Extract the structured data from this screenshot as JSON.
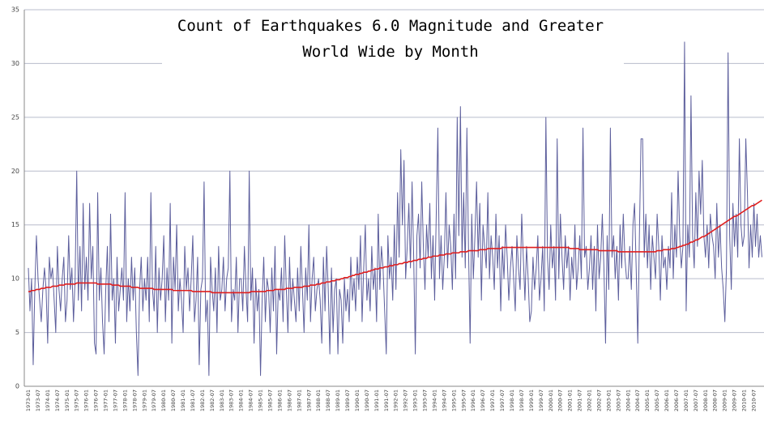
{
  "chart_data": {
    "type": "line",
    "title": [
      "Count of Earthquakes 6.0 Magnitude and Greater",
      "World Wide by Month"
    ],
    "ylim": [
      0,
      35
    ],
    "yticks": [
      0,
      5,
      10,
      15,
      20,
      25,
      30,
      35
    ],
    "grid": true,
    "categories": [
      "1973-01",
      null,
      null,
      null,
      null,
      null,
      "1973-07",
      null,
      null,
      null,
      null,
      null,
      "1974-01",
      null,
      null,
      null,
      null,
      null,
      "1974-07",
      null,
      null,
      null,
      null,
      null,
      "1975-01",
      null,
      null,
      null,
      null,
      null,
      "1975-07",
      null,
      null,
      null,
      null,
      null,
      "1976-01",
      null,
      null,
      null,
      null,
      null,
      "1976-07",
      null,
      null,
      null,
      null,
      null,
      "1977-01",
      null,
      null,
      null,
      null,
      null,
      "1977-07",
      null,
      null,
      null,
      null,
      null,
      "1978-01",
      null,
      null,
      null,
      null,
      null,
      "1978-07",
      null,
      null,
      null,
      null,
      null,
      "1979-01",
      null,
      null,
      null,
      null,
      null,
      "1979-07",
      null,
      null,
      null,
      null,
      null,
      "1980-01",
      null,
      null,
      null,
      null,
      null,
      "1980-07",
      null,
      null,
      null,
      null,
      null,
      "1981-01",
      null,
      null,
      null,
      null,
      null,
      "1981-07",
      null,
      null,
      null,
      null,
      null,
      "1982-01",
      null,
      null,
      null,
      null,
      null,
      "1982-07",
      null,
      null,
      null,
      null,
      null,
      "1983-01",
      null,
      null,
      null,
      null,
      null,
      "1983-07",
      null,
      null,
      null,
      null,
      null,
      "1984-01",
      null,
      null,
      null,
      null,
      null,
      "1984-07",
      null,
      null,
      null,
      null,
      null,
      "1985-01",
      null,
      null,
      null,
      null,
      null,
      "1985-07",
      null,
      null,
      null,
      null,
      null,
      "1986-01",
      null,
      null,
      null,
      null,
      null,
      "1986-07",
      null,
      null,
      null,
      null,
      null,
      "1987-01",
      null,
      null,
      null,
      null,
      null,
      "1987-07",
      null,
      null,
      null,
      null,
      null,
      "1988-01",
      null,
      null,
      null,
      null,
      null,
      "1988-07",
      null,
      null,
      null,
      null,
      null,
      "1989-01",
      null,
      null,
      null,
      null,
      null,
      "1989-07",
      null,
      null,
      null,
      null,
      null,
      "1990-01",
      null,
      null,
      null,
      null,
      null,
      "1990-07",
      null,
      null,
      null,
      null,
      null,
      "1991-01",
      null,
      null,
      null,
      null,
      null,
      "1991-07",
      null,
      null,
      null,
      null,
      null,
      "1992-01",
      null,
      null,
      null,
      null,
      null,
      "1992-07",
      null,
      null,
      null,
      null,
      null,
      "1993-01",
      null,
      null,
      null,
      null,
      null,
      "1993-07",
      null,
      null,
      null,
      null,
      null,
      "1994-01",
      null,
      null,
      null,
      null,
      null,
      "1994-07",
      null,
      null,
      null,
      null,
      null,
      "1995-01",
      null,
      null,
      null,
      null,
      null,
      "1995-07",
      null,
      null,
      null,
      null,
      null,
      "1996-01",
      null,
      null,
      null,
      null,
      null,
      "1996-07",
      null,
      null,
      null,
      null,
      null,
      "1997-01",
      null,
      null,
      null,
      null,
      null,
      "1997-07",
      null,
      null,
      null,
      null,
      null,
      "1998-01",
      null,
      null,
      null,
      null,
      null,
      "1998-07",
      null,
      null,
      null,
      null,
      null,
      "1999-01",
      null,
      null,
      null,
      null,
      null,
      "1999-07",
      null,
      null,
      null,
      null,
      null,
      "2000-01",
      null,
      null,
      null,
      null,
      null,
      "2000-07",
      null,
      null,
      null,
      null,
      null,
      "2001-01",
      null,
      null,
      null,
      null,
      null,
      "2001-07",
      null,
      null,
      null,
      null,
      null,
      "2002-01",
      null,
      null,
      null,
      null,
      null,
      "2002-07",
      null,
      null,
      null,
      null,
      null,
      "2003-01",
      null,
      null,
      null,
      null,
      null,
      "2003-07",
      null,
      null,
      null,
      null,
      null,
      "2004-01",
      null,
      null,
      null,
      null,
      null,
      "2004-07",
      null,
      null,
      null,
      null,
      null,
      "2005-01",
      null,
      null,
      null,
      null,
      null,
      "2005-07",
      null,
      null,
      null,
      null,
      null,
      "2006-01",
      null,
      null,
      null,
      null,
      null,
      "2006-07",
      null,
      null,
      null,
      null,
      null,
      "2007-01",
      null,
      null,
      null,
      null,
      null,
      "2007-07",
      null,
      null,
      null,
      null,
      null,
      "2008-01",
      null,
      null,
      null,
      null,
      null,
      "2008-07",
      null,
      null,
      null,
      null,
      null,
      "2009-01",
      null,
      null,
      null,
      null,
      null,
      "2009-07",
      null,
      null,
      null,
      null,
      null,
      "2010-01",
      null,
      null,
      null,
      null,
      null,
      "2010-07",
      null,
      null,
      null,
      null,
      null
    ],
    "series": [
      {
        "color": "#5c5e9c",
        "values": [
          11,
          7,
          10,
          2,
          9,
          14,
          10,
          8,
          6,
          9,
          11,
          9,
          4,
          12,
          10,
          11,
          8,
          5,
          13,
          9,
          7,
          10,
          12,
          6,
          8,
          14,
          9,
          11,
          6,
          10,
          20,
          8,
          13,
          7,
          17,
          9,
          12,
          8,
          17,
          10,
          13,
          4,
          3,
          18,
          8,
          11,
          6,
          3,
          9,
          13,
          6,
          16,
          8,
          10,
          4,
          12,
          7,
          9,
          11,
          8,
          18,
          6,
          10,
          7,
          12,
          8,
          11,
          5,
          1,
          9,
          12,
          7,
          10,
          8,
          12,
          6,
          18,
          9,
          7,
          13,
          5,
          11,
          8,
          10,
          14,
          6,
          11,
          8,
          17,
          4,
          12,
          9,
          15,
          7,
          10,
          8,
          5,
          13,
          9,
          11,
          7,
          10,
          14,
          6,
          8,
          12,
          2,
          9,
          10,
          19,
          6,
          8,
          1,
          12,
          9,
          7,
          11,
          5,
          13,
          8,
          9,
          12,
          7,
          10,
          11,
          20,
          6,
          9,
          8,
          12,
          5,
          10,
          10,
          7,
          13,
          9,
          6,
          20,
          8,
          11,
          4,
          10,
          7,
          9,
          1,
          8,
          12,
          6,
          10,
          9,
          5,
          11,
          7,
          13,
          3,
          9,
          8,
          11,
          6,
          14,
          9,
          5,
          12,
          7,
          10,
          8,
          6,
          11,
          7,
          13,
          9,
          5,
          11,
          8,
          15,
          6,
          10,
          12,
          7,
          9,
          10,
          8,
          4,
          12,
          7,
          13,
          9,
          3,
          11,
          5,
          9,
          10,
          3,
          9,
          8,
          4,
          10,
          7,
          9,
          6,
          12,
          8,
          10,
          7,
          12,
          9,
          14,
          6,
          11,
          15,
          8,
          10,
          7,
          13,
          9,
          11,
          6,
          16,
          9,
          13,
          11,
          7,
          3,
          14,
          10,
          12,
          8,
          15,
          9,
          18,
          12,
          22,
          15,
          21,
          10,
          13,
          17,
          11,
          19,
          12,
          3,
          14,
          16,
          11,
          19,
          13,
          9,
          15,
          12,
          17,
          10,
          14,
          8,
          16,
          24,
          10,
          14,
          9,
          12,
          18,
          11,
          15,
          13,
          9,
          16,
          10,
          25,
          14,
          26,
          12,
          18,
          11,
          24,
          13,
          4,
          16,
          10,
          14,
          19,
          12,
          17,
          8,
          15,
          13,
          11,
          18,
          10,
          14,
          12,
          9,
          16,
          11,
          14,
          7,
          13,
          10,
          15,
          12,
          8,
          11,
          13,
          10,
          7,
          14,
          11,
          9,
          16,
          12,
          8,
          13,
          10,
          6,
          7,
          12,
          9,
          11,
          14,
          8,
          10,
          13,
          7,
          25,
          12,
          9,
          15,
          11,
          13,
          8,
          23,
          10,
          16,
          12,
          9,
          14,
          11,
          13,
          8,
          12,
          10,
          15,
          9,
          11,
          14,
          10,
          24,
          12,
          13,
          9,
          11,
          14,
          9,
          13,
          7,
          15,
          10,
          12,
          16,
          11,
          4,
          14,
          9,
          24,
          12,
          14,
          10,
          13,
          8,
          15,
          11,
          16,
          12,
          10,
          10,
          13,
          9,
          15,
          17,
          11,
          4,
          14,
          23,
          23,
          12,
          16,
          11,
          15,
          9,
          14,
          12,
          10,
          16,
          13,
          8,
          14,
          11,
          12,
          9,
          13,
          11,
          18,
          10,
          15,
          12,
          20,
          14,
          11,
          13,
          32,
          7,
          15,
          12,
          27,
          14,
          11,
          18,
          13,
          20,
          16,
          21,
          14,
          12,
          15,
          11,
          16,
          14,
          13,
          10,
          17,
          12,
          15,
          11,
          9,
          6,
          11,
          31,
          14,
          9,
          17,
          13,
          16,
          12,
          23,
          15,
          13,
          14,
          23,
          18,
          11,
          15,
          12,
          17,
          13,
          16,
          12,
          14,
          12
        ]
      },
      {
        "color": "#e01e1e",
        "values": [
          8.8,
          8.8,
          8.9,
          8.9,
          8.9,
          9.0,
          9.0,
          9.0,
          9.1,
          9.1,
          9.1,
          9.2,
          9.2,
          9.2,
          9.2,
          9.3,
          9.3,
          9.3,
          9.3,
          9.4,
          9.4,
          9.4,
          9.4,
          9.5,
          9.5,
          9.5,
          9.5,
          9.5,
          9.5,
          9.5,
          9.6,
          9.6,
          9.6,
          9.6,
          9.6,
          9.6,
          9.6,
          9.6,
          9.6,
          9.6,
          9.6,
          9.6,
          9.6,
          9.5,
          9.5,
          9.5,
          9.5,
          9.5,
          9.5,
          9.5,
          9.5,
          9.5,
          9.4,
          9.4,
          9.4,
          9.4,
          9.4,
          9.3,
          9.3,
          9.3,
          9.3,
          9.3,
          9.3,
          9.3,
          9.2,
          9.2,
          9.2,
          9.2,
          9.2,
          9.1,
          9.1,
          9.1,
          9.1,
          9.1,
          9.1,
          9.1,
          9.1,
          9.1,
          9.0,
          9.0,
          9.0,
          9.0,
          9.0,
          9.0,
          9.0,
          9.0,
          9.0,
          9.0,
          9.0,
          9.0,
          8.9,
          8.9,
          8.9,
          8.9,
          8.9,
          8.9,
          8.9,
          8.9,
          8.9,
          8.9,
          8.9,
          8.9,
          8.8,
          8.8,
          8.8,
          8.8,
          8.8,
          8.8,
          8.8,
          8.8,
          8.8,
          8.8,
          8.8,
          8.8,
          8.7,
          8.7,
          8.7,
          8.7,
          8.7,
          8.7,
          8.7,
          8.7,
          8.7,
          8.7,
          8.7,
          8.7,
          8.7,
          8.7,
          8.7,
          8.7,
          8.7,
          8.7,
          8.7,
          8.7,
          8.7,
          8.7,
          8.7,
          8.7,
          8.8,
          8.8,
          8.8,
          8.8,
          8.8,
          8.8,
          8.8,
          8.8,
          8.8,
          8.8,
          8.9,
          8.9,
          8.9,
          8.9,
          8.9,
          9.0,
          9.0,
          9.0,
          9.0,
          9.0,
          9.0,
          9.0,
          9.1,
          9.1,
          9.1,
          9.1,
          9.1,
          9.2,
          9.2,
          9.2,
          9.2,
          9.2,
          9.2,
          9.3,
          9.3,
          9.3,
          9.3,
          9.4,
          9.4,
          9.4,
          9.4,
          9.5,
          9.5,
          9.5,
          9.6,
          9.6,
          9.6,
          9.7,
          9.7,
          9.7,
          9.8,
          9.8,
          9.8,
          9.9,
          9.9,
          9.9,
          10.0,
          10.0,
          10.1,
          10.1,
          10.1,
          10.2,
          10.2,
          10.3,
          10.3,
          10.4,
          10.4,
          10.4,
          10.5,
          10.5,
          10.6,
          10.6,
          10.6,
          10.7,
          10.7,
          10.8,
          10.8,
          10.9,
          10.9,
          10.9,
          11.0,
          11.0,
          11.0,
          11.1,
          11.1,
          11.1,
          11.2,
          11.2,
          11.2,
          11.3,
          11.3,
          11.3,
          11.4,
          11.4,
          11.4,
          11.5,
          11.5,
          11.5,
          11.6,
          11.6,
          11.6,
          11.7,
          11.7,
          11.7,
          11.8,
          11.8,
          11.8,
          11.9,
          11.9,
          11.9,
          12.0,
          12.0,
          12.0,
          12.1,
          12.1,
          12.1,
          12.1,
          12.2,
          12.2,
          12.2,
          12.2,
          12.3,
          12.3,
          12.3,
          12.3,
          12.4,
          12.4,
          12.4,
          12.4,
          12.4,
          12.5,
          12.5,
          12.5,
          12.5,
          12.5,
          12.6,
          12.6,
          12.6,
          12.6,
          12.6,
          12.6,
          12.6,
          12.7,
          12.7,
          12.7,
          12.7,
          12.7,
          12.8,
          12.8,
          12.8,
          12.8,
          12.8,
          12.8,
          12.8,
          12.8,
          12.8,
          12.9,
          12.9,
          12.9,
          12.9,
          12.9,
          12.9,
          12.9,
          12.9,
          12.9,
          12.9,
          12.9,
          12.9,
          12.9,
          12.9,
          12.9,
          12.9,
          12.9,
          12.9,
          12.9,
          12.9,
          12.9,
          12.9,
          12.9,
          12.9,
          12.9,
          12.9,
          12.9,
          12.9,
          12.9,
          12.9,
          12.9,
          12.9,
          12.9,
          12.9,
          12.9,
          12.9,
          12.9,
          12.9,
          12.9,
          12.9,
          12.9,
          12.9,
          12.8,
          12.8,
          12.8,
          12.8,
          12.8,
          12.8,
          12.7,
          12.7,
          12.7,
          12.7,
          12.7,
          12.7,
          12.7,
          12.7,
          12.7,
          12.7,
          12.7,
          12.7,
          12.6,
          12.6,
          12.6,
          12.6,
          12.6,
          12.6,
          12.6,
          12.6,
          12.6,
          12.6,
          12.6,
          12.6,
          12.5,
          12.5,
          12.5,
          12.5,
          12.5,
          12.5,
          12.5,
          12.5,
          12.5,
          12.5,
          12.5,
          12.5,
          12.5,
          12.5,
          12.5,
          12.5,
          12.5,
          12.5,
          12.5,
          12.5,
          12.5,
          12.5,
          12.5,
          12.5,
          12.6,
          12.6,
          12.6,
          12.6,
          12.7,
          12.7,
          12.7,
          12.7,
          12.7,
          12.8,
          12.8,
          12.8,
          12.9,
          12.9,
          13.0,
          13.0,
          13.1,
          13.1,
          13.2,
          13.2,
          13.3,
          13.4,
          13.4,
          13.5,
          13.6,
          13.6,
          13.7,
          13.8,
          13.9,
          13.9,
          14.0,
          14.1,
          14.2,
          14.3,
          14.4,
          14.5,
          14.6,
          14.7,
          14.8,
          14.9,
          15.0,
          15.1,
          15.2,
          15.3,
          15.4,
          15.5,
          15.6,
          15.7,
          15.8,
          15.8,
          15.9,
          16.0,
          16.1,
          16.2,
          16.3,
          16.4,
          16.5,
          16.6,
          16.7,
          16.8,
          16.8,
          16.9,
          17.0,
          17.1,
          17.2,
          17.3
        ]
      }
    ]
  }
}
